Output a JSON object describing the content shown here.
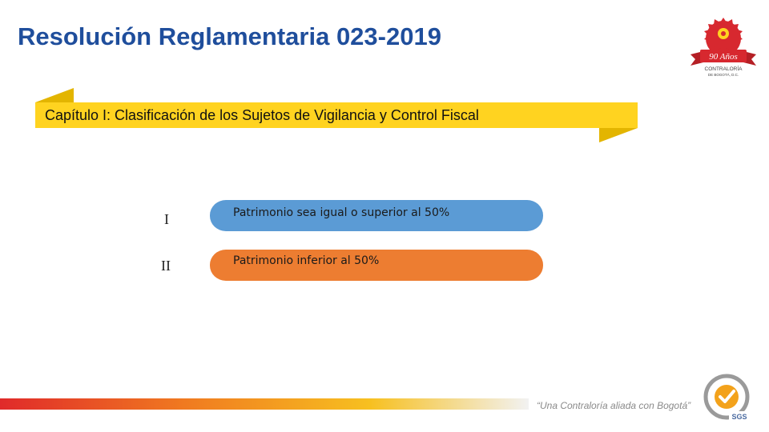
{
  "slide": {
    "title": "Resolución Reglamentaria 023-2019",
    "banner_text": "Capítulo I: Clasificación de los Sujetos de Vigilancia y Control Fiscal",
    "items": [
      {
        "numeral": "I",
        "text": "Patrimonio sea igual o superior al 50%",
        "color": "#5b9bd5"
      },
      {
        "numeral": "II",
        "text": "Patrimonio inferior al 50%",
        "color": "#ed7d31"
      }
    ]
  },
  "logo": {
    "icon": "contraloria-logo-icon",
    "anniversary_text": "90 Años",
    "org_line1": "CONTRALORÍA",
    "org_line2": "DE BOGOTÁ, D.C.",
    "color": "#d7282f"
  },
  "footer": {
    "slogan": "“Una Contraloría aliada con Bogotá”",
    "cert_icon": "sgs-certification-icon",
    "cert_label": "SGS"
  },
  "colors": {
    "title": "#1f4e9c",
    "banner": "#ffd320",
    "accent_orange": "#ed7d31",
    "accent_blue": "#5b9bd5"
  }
}
